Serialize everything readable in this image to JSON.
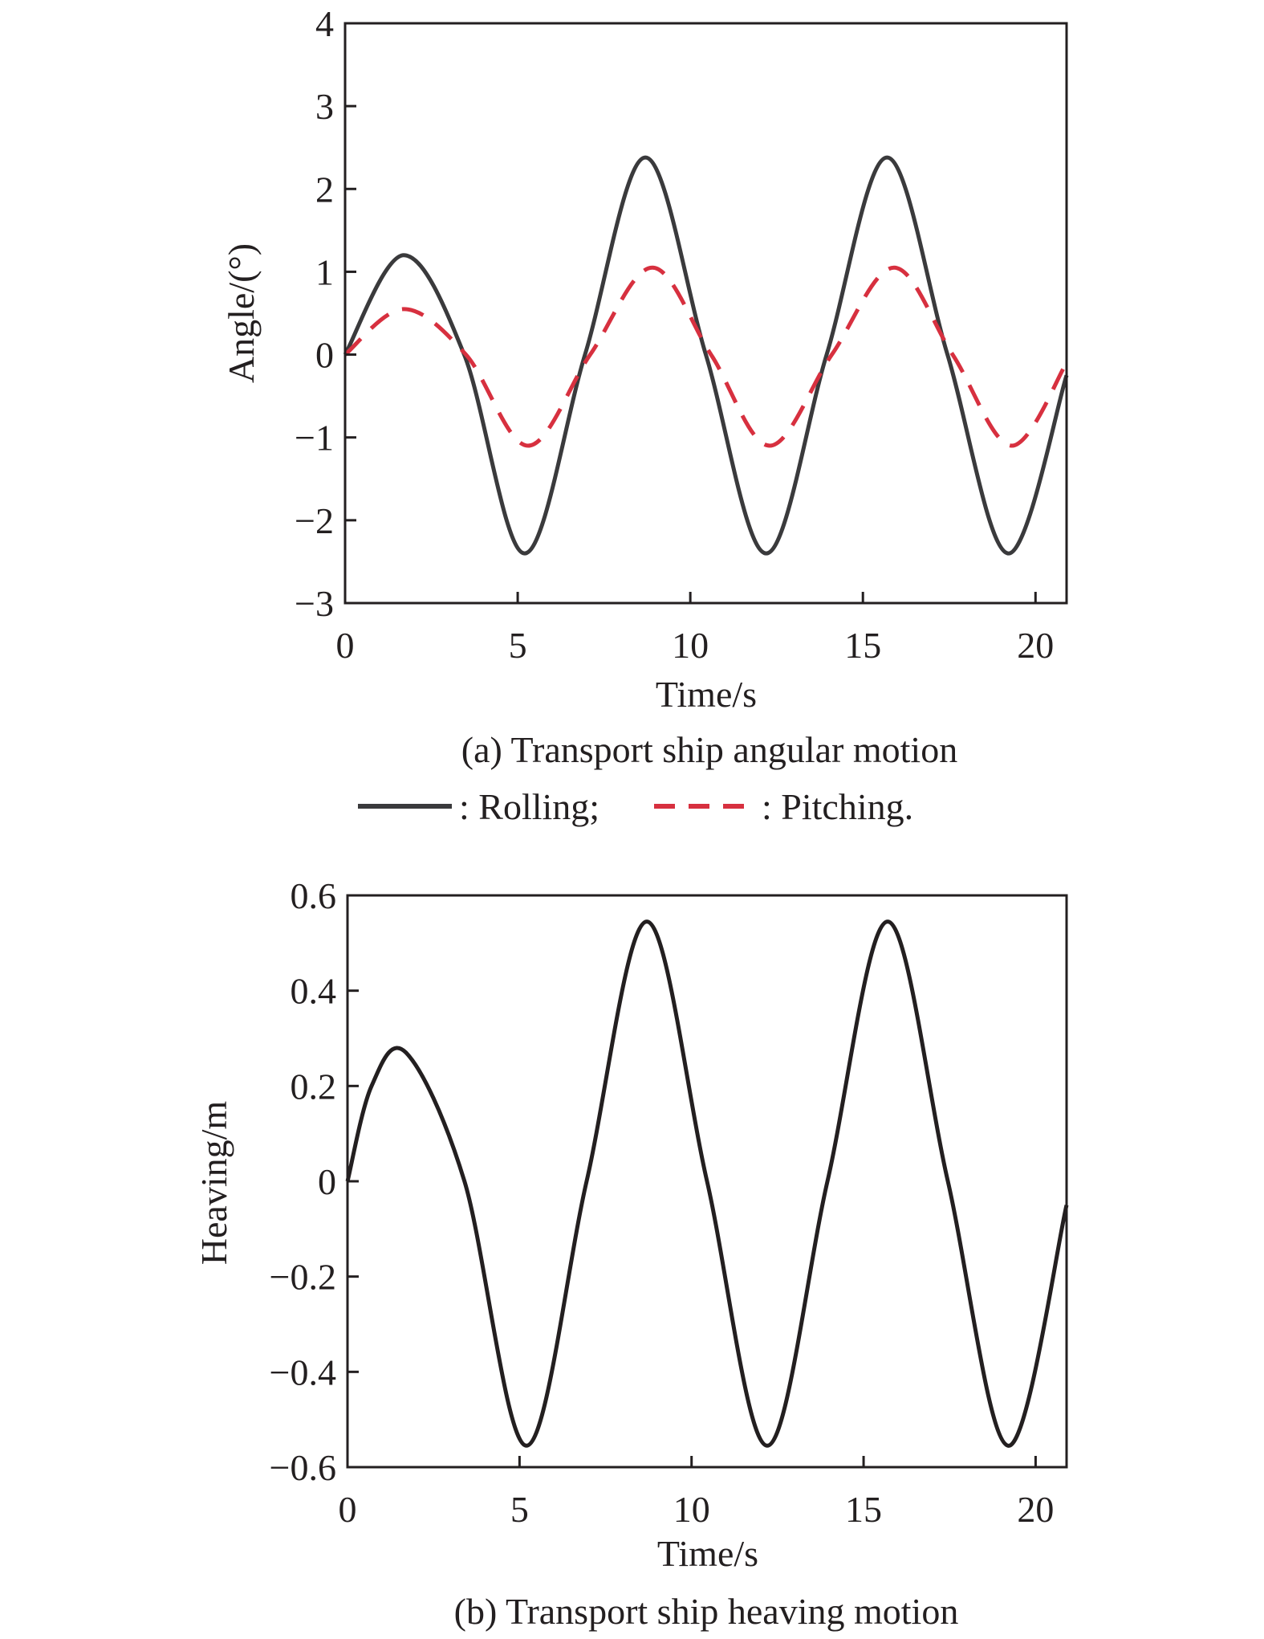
{
  "chart_data": [
    {
      "type": "line",
      "caption": "(a) Transport ship angular motion",
      "xlabel": "Time/s",
      "ylabel": "Angle/(°)",
      "xlim": [
        0,
        20.9
      ],
      "ylim": [
        -3,
        4
      ],
      "xticks": [
        "0",
        "5",
        "10",
        "15",
        "20"
      ],
      "yticks": [
        "−3",
        "−2",
        "−1",
        "0",
        "1",
        "2",
        "3",
        "4"
      ],
      "grid": false,
      "legend": {
        "position": "below",
        "entries": [
          ": Rolling;",
          ": Pitching."
        ]
      },
      "series": [
        {
          "name": "Rolling",
          "color": "#3a3a3c",
          "style": "solid",
          "x": [
            0,
            1.7,
            3.45,
            5.2,
            6.95,
            8.7,
            10.45,
            12.2,
            13.95,
            15.7,
            17.45,
            19.2,
            20.9
          ],
          "y": [
            0,
            1.2,
            0,
            -2.4,
            0,
            2.38,
            0,
            -2.4,
            0,
            2.38,
            0,
            -2.4,
            -0.25
          ]
        },
        {
          "name": "Pitching",
          "color": "#d7303f",
          "style": "dashed",
          "x": [
            0,
            1.7,
            3.5,
            5.3,
            7.1,
            8.9,
            10.6,
            12.3,
            14.1,
            15.9,
            17.6,
            19.3,
            20.9
          ],
          "y": [
            0,
            0.55,
            0,
            -1.1,
            0,
            1.05,
            0,
            -1.1,
            0,
            1.05,
            0,
            -1.1,
            -0.1
          ]
        }
      ]
    },
    {
      "type": "line",
      "caption": "(b) Transport ship heaving motion",
      "xlabel": "Time/s",
      "ylabel": "Heaving/m",
      "xlim": [
        0,
        20.9
      ],
      "ylim": [
        -0.6,
        0.6
      ],
      "xticks": [
        "0",
        "5",
        "10",
        "15",
        "20"
      ],
      "yticks": [
        "−0.6",
        "−0.4",
        "−0.2",
        "0",
        "0.2",
        "0.4",
        "0.6"
      ],
      "grid": false,
      "series": [
        {
          "name": "Heaving",
          "color": "#231f20",
          "style": "solid",
          "x": [
            0,
            0.7,
            1.7,
            3.4,
            5.2,
            6.95,
            8.7,
            10.45,
            12.2,
            13.95,
            15.7,
            17.45,
            19.2,
            20.9
          ],
          "y": [
            0,
            0.2,
            0.27,
            0,
            -0.555,
            0,
            0.545,
            0,
            -0.555,
            0,
            0.545,
            0,
            -0.555,
            -0.05
          ]
        }
      ]
    }
  ]
}
